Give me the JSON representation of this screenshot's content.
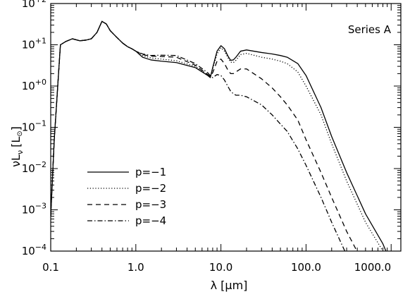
{
  "chart_data": {
    "type": "line",
    "annotation": "Series A",
    "xlabel_main": "λ [",
    "xlabel_unit_greek": "μ",
    "xlabel_unit_rest": "m]",
    "ylabel_nu": "ν",
    "ylabel_L": "L",
    "ylabel_sub": "ν",
    "ylabel_open": "[L",
    "ylabel_close": "]",
    "x_scale": "log",
    "y_scale": "log",
    "xlim": [
      0.1,
      1300
    ],
    "ylim": [
      0.0001,
      100
    ],
    "x_ticks": [
      {
        "value": 0.1,
        "label": "0.1"
      },
      {
        "value": 1,
        "label": "1.0"
      },
      {
        "value": 10,
        "label": "10.0"
      },
      {
        "value": 100,
        "label": "100.0"
      },
      {
        "value": 1000,
        "label": "1000.0"
      }
    ],
    "y_ticks": [
      {
        "value": 0.0001,
        "base": "10",
        "exp": "−4"
      },
      {
        "value": 0.001,
        "base": "10",
        "exp": "−3"
      },
      {
        "value": 0.01,
        "base": "10",
        "exp": "−2"
      },
      {
        "value": 0.1,
        "base": "10",
        "exp": "−1"
      },
      {
        "value": 1,
        "base": "10",
        "exp": "+0"
      },
      {
        "value": 10,
        "base": "10",
        "exp": "+1"
      },
      {
        "value": 100,
        "base": "10",
        "exp": "+2"
      }
    ],
    "legend_position": "bottom-left",
    "series": [
      {
        "name": "p=−1",
        "dash": "solid",
        "points": [
          [
            0.1,
            0.0007
          ],
          [
            0.11,
            0.05
          ],
          [
            0.13,
            10
          ],
          [
            0.15,
            12
          ],
          [
            0.18,
            14
          ],
          [
            0.22,
            12.5
          ],
          [
            0.26,
            13
          ],
          [
            0.3,
            14
          ],
          [
            0.35,
            20
          ],
          [
            0.4,
            37
          ],
          [
            0.45,
            32
          ],
          [
            0.5,
            22
          ],
          [
            0.6,
            15
          ],
          [
            0.7,
            11
          ],
          [
            0.8,
            9
          ],
          [
            0.9,
            8
          ],
          [
            1,
            7
          ],
          [
            1.2,
            5
          ],
          [
            1.5,
            4.3
          ],
          [
            2,
            4
          ],
          [
            3,
            3.7
          ],
          [
            5,
            2.8
          ],
          [
            7,
            1.8
          ],
          [
            7.5,
            1.6
          ],
          [
            8,
            2.8
          ],
          [
            9,
            7
          ],
          [
            10,
            9.5
          ],
          [
            11,
            8
          ],
          [
            12,
            5.5
          ],
          [
            13,
            4.2
          ],
          [
            14,
            4.3
          ],
          [
            15,
            5
          ],
          [
            17,
            7
          ],
          [
            20,
            7.5
          ],
          [
            30,
            6.5
          ],
          [
            40,
            6
          ],
          [
            50,
            5.5
          ],
          [
            60,
            5
          ],
          [
            80,
            3.5
          ],
          [
            100,
            1.8
          ],
          [
            150,
            0.3
          ],
          [
            200,
            0.06
          ],
          [
            300,
            0.008
          ],
          [
            500,
            0.0008
          ],
          [
            800,
            0.00015
          ],
          [
            1000,
            5e-05
          ]
        ]
      },
      {
        "name": "p=−2",
        "dash": "dotted",
        "points": [
          [
            0.1,
            0.0007
          ],
          [
            0.11,
            0.05
          ],
          [
            0.13,
            10
          ],
          [
            0.15,
            12
          ],
          [
            0.18,
            14
          ],
          [
            0.22,
            12.5
          ],
          [
            0.26,
            13
          ],
          [
            0.3,
            14
          ],
          [
            0.35,
            20
          ],
          [
            0.4,
            37
          ],
          [
            0.45,
            32
          ],
          [
            0.5,
            22
          ],
          [
            0.6,
            15
          ],
          [
            0.7,
            11
          ],
          [
            0.8,
            9
          ],
          [
            0.9,
            8
          ],
          [
            1,
            7
          ],
          [
            1.2,
            5.5
          ],
          [
            1.5,
            4.8
          ],
          [
            2,
            4.5
          ],
          [
            3,
            4.1
          ],
          [
            5,
            3
          ],
          [
            7,
            1.9
          ],
          [
            7.5,
            1.6
          ],
          [
            8,
            2.6
          ],
          [
            9,
            6
          ],
          [
            10,
            8.5
          ],
          [
            11,
            7
          ],
          [
            12,
            5
          ],
          [
            13,
            3.8
          ],
          [
            14,
            3.7
          ],
          [
            15,
            4.2
          ],
          [
            17,
            5.8
          ],
          [
            20,
            6.2
          ],
          [
            30,
            5
          ],
          [
            40,
            4.5
          ],
          [
            50,
            4
          ],
          [
            60,
            3.5
          ],
          [
            80,
            2.2
          ],
          [
            100,
            1
          ],
          [
            150,
            0.2
          ],
          [
            200,
            0.04
          ],
          [
            300,
            0.005
          ],
          [
            500,
            0.0005
          ],
          [
            800,
            0.0001
          ],
          [
            1000,
            4e-05
          ]
        ]
      },
      {
        "name": "p=−3",
        "dash": "dashed",
        "points": [
          [
            0.1,
            0.0007
          ],
          [
            0.11,
            0.05
          ],
          [
            0.13,
            10
          ],
          [
            0.15,
            12
          ],
          [
            0.18,
            14
          ],
          [
            0.22,
            12.5
          ],
          [
            0.26,
            13
          ],
          [
            0.3,
            14
          ],
          [
            0.35,
            20
          ],
          [
            0.4,
            37
          ],
          [
            0.45,
            32
          ],
          [
            0.5,
            22
          ],
          [
            0.6,
            15
          ],
          [
            0.7,
            11
          ],
          [
            0.8,
            9
          ],
          [
            0.9,
            8
          ],
          [
            1,
            7
          ],
          [
            1.2,
            5.8
          ],
          [
            1.5,
            5.3
          ],
          [
            2,
            5.2
          ],
          [
            3,
            5
          ],
          [
            5,
            3.2
          ],
          [
            7,
            1.9
          ],
          [
            7.5,
            1.7
          ],
          [
            8,
            2.1
          ],
          [
            9,
            4
          ],
          [
            10,
            4.5
          ],
          [
            11,
            3.5
          ],
          [
            12,
            2.5
          ],
          [
            13,
            2
          ],
          [
            14,
            2
          ],
          [
            15,
            2.2
          ],
          [
            17,
            2.6
          ],
          [
            20,
            2.6
          ],
          [
            30,
            1.5
          ],
          [
            40,
            0.9
          ],
          [
            50,
            0.55
          ],
          [
            60,
            0.35
          ],
          [
            80,
            0.15
          ],
          [
            100,
            0.05
          ],
          [
            150,
            0.008
          ],
          [
            200,
            0.002
          ],
          [
            300,
            0.0003
          ],
          [
            500,
            4e-05
          ]
        ]
      },
      {
        "name": "p=−4",
        "dash": "dashdot",
        "points": [
          [
            0.1,
            0.0007
          ],
          [
            0.11,
            0.05
          ],
          [
            0.13,
            10
          ],
          [
            0.15,
            12
          ],
          [
            0.18,
            14
          ],
          [
            0.22,
            12.5
          ],
          [
            0.26,
            13
          ],
          [
            0.3,
            14
          ],
          [
            0.35,
            20
          ],
          [
            0.4,
            37
          ],
          [
            0.45,
            32
          ],
          [
            0.5,
            22
          ],
          [
            0.6,
            15
          ],
          [
            0.7,
            11
          ],
          [
            0.8,
            9
          ],
          [
            0.9,
            8
          ],
          [
            1,
            7
          ],
          [
            1.2,
            6
          ],
          [
            1.5,
            5.5
          ],
          [
            2,
            5.6
          ],
          [
            3,
            5.5
          ],
          [
            5,
            3.5
          ],
          [
            7,
            2.1
          ],
          [
            7.5,
            1.8
          ],
          [
            8,
            1.6
          ],
          [
            9,
            1.9
          ],
          [
            10,
            1.8
          ],
          [
            11,
            1.4
          ],
          [
            12,
            1
          ],
          [
            13,
            0.75
          ],
          [
            14,
            0.65
          ],
          [
            15,
            0.6
          ],
          [
            17,
            0.6
          ],
          [
            20,
            0.55
          ],
          [
            30,
            0.35
          ],
          [
            40,
            0.2
          ],
          [
            50,
            0.12
          ],
          [
            60,
            0.08
          ],
          [
            80,
            0.03
          ],
          [
            100,
            0.012
          ],
          [
            150,
            0.002
          ],
          [
            200,
            0.0005
          ],
          [
            300,
            8e-05
          ]
        ]
      }
    ]
  }
}
